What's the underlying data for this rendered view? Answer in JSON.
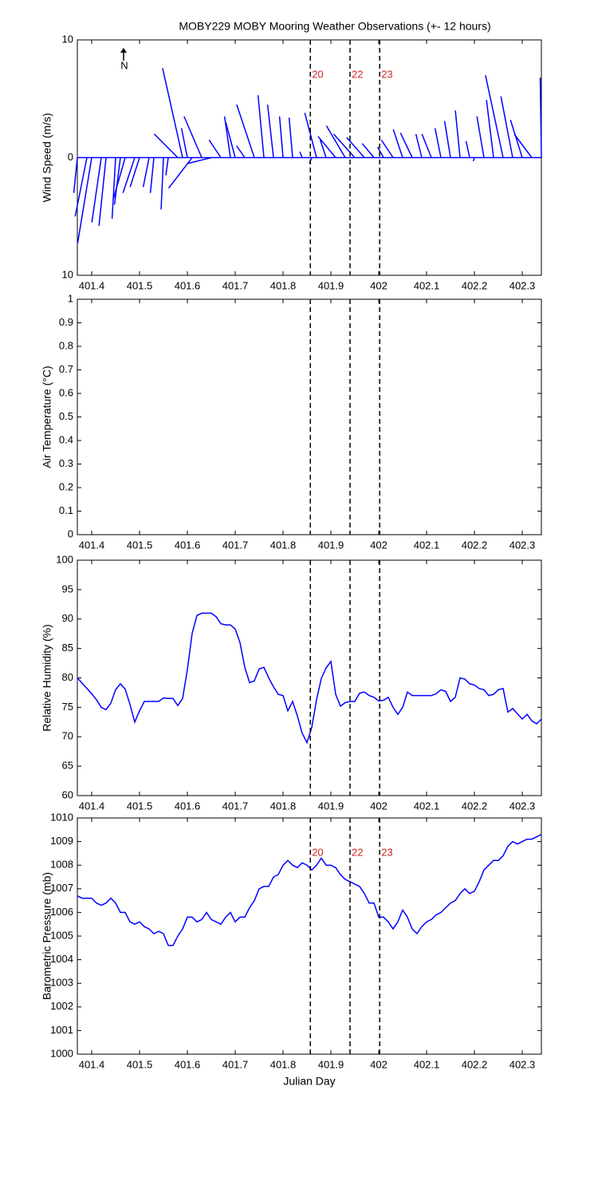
{
  "chart_data": [
    {
      "type": "stick",
      "title": "MOBY229 MOBY Mooring Weather Observations (+- 12 hours)",
      "ylabel": "Wind Speed (m/s)",
      "north_label": "N",
      "color": "#0000ff",
      "xlim": [
        401.37,
        402.34
      ],
      "xticks": [
        401.4,
        401.5,
        401.6,
        401.7,
        401.8,
        401.9,
        402,
        402.1,
        402.2,
        402.3
      ],
      "ylim": [
        -10,
        10
      ],
      "yticks": [
        {
          "value": -10,
          "label": "10"
        },
        0,
        10
      ],
      "markers": [
        {
          "value": 401.857,
          "label": "20"
        },
        {
          "value": 401.94,
          "label": "22"
        },
        {
          "value": 402.002,
          "label": "23"
        }
      ],
      "x": [
        401.37,
        401.39,
        401.4,
        401.42,
        401.43,
        401.45,
        401.46,
        401.47,
        401.49,
        401.5,
        401.52,
        401.53,
        401.55,
        401.56,
        401.58,
        401.59,
        401.6,
        401.61,
        401.63,
        401.65,
        401.67,
        401.69,
        401.7,
        401.72,
        401.74,
        401.76,
        401.78,
        401.8,
        401.82,
        401.84,
        401.86,
        401.87,
        401.89,
        401.91,
        401.93,
        401.95,
        401.97,
        401.99,
        402.01,
        402.03,
        402.05,
        402.07,
        402.09,
        402.11,
        402.13,
        402.15,
        402.17,
        402.19,
        402.2,
        402.22,
        402.24,
        402.26,
        402.28,
        402.3,
        402.32,
        402.34
      ],
      "u": [
        -0.3,
        -1,
        -1.2,
        -0.8,
        -0.6,
        -0.3,
        -0.5,
        -1,
        -1,
        -0.8,
        -0.5,
        -0.3,
        -0.2,
        -0.2,
        -2,
        -1.7,
        -0.5,
        -2,
        -1.5,
        -2,
        -1,
        -0.5,
        -0.8,
        -0.7,
        -1.5,
        -0.5,
        -0.5,
        -0.3,
        -0.3,
        -0.2,
        -0.2,
        -1,
        -0.5,
        -1.5,
        -1.6,
        -1.8,
        -1.5,
        -1,
        -0.5,
        -1,
        -0.8,
        -1,
        -0.5,
        -0.8,
        -0.5,
        -0.5,
        -0.4,
        -0.3,
        -0.1,
        -0.6,
        -0.6,
        -1.5,
        -1,
        -1,
        -1.5,
        -0.1
      ],
      "v": [
        -3,
        -5,
        -7.3,
        -5.5,
        -5.8,
        -5.2,
        -4,
        -3.5,
        -3,
        -2.5,
        -2.5,
        -3,
        -4.4,
        -1.5,
        2,
        7.6,
        2.5,
        -2.6,
        3.5,
        -0.5,
        1.5,
        3.5,
        3,
        1,
        4.5,
        5.3,
        4.5,
        3.5,
        3.4,
        0.5,
        -0.5,
        3.8,
        1.5,
        1.8,
        2.7,
        2,
        1.7,
        1.2,
        0.9,
        1.5,
        2.4,
        2.1,
        2,
        2,
        2.5,
        3.1,
        4,
        1.4,
        -0.3,
        3.5,
        4.9,
        7,
        5.2,
        3.2,
        2,
        6.8
      ]
    },
    {
      "type": "line",
      "ylabel": "Air Temperature (°C)",
      "color": "#0000ff",
      "xlim": [
        401.37,
        402.34
      ],
      "xticks": [
        401.4,
        401.5,
        401.6,
        401.7,
        401.8,
        401.9,
        402,
        402.1,
        402.2,
        402.3
      ],
      "ylim": [
        0,
        1
      ],
      "yticks": [
        0,
        0.1,
        0.2,
        0.3,
        0.4,
        0.5,
        0.6,
        0.7,
        0.8,
        0.9,
        1
      ],
      "markers": [
        {
          "value": 401.857
        },
        {
          "value": 401.94
        },
        {
          "value": 402.002
        }
      ],
      "x": [],
      "values": []
    },
    {
      "type": "line",
      "ylabel": "Relative Humidity (%)",
      "color": "#0000ff",
      "xlim": [
        401.37,
        402.34
      ],
      "xticks": [
        401.4,
        401.5,
        401.6,
        401.7,
        401.8,
        401.9,
        402,
        402.1,
        402.2,
        402.3
      ],
      "ylim": [
        60,
        100
      ],
      "yticks": [
        60,
        65,
        70,
        75,
        80,
        85,
        90,
        95,
        100
      ],
      "markers": [
        {
          "value": 401.857
        },
        {
          "value": 401.94
        },
        {
          "value": 402.002
        }
      ],
      "x": [
        401.37,
        401.38,
        401.39,
        401.4,
        401.41,
        401.42,
        401.43,
        401.44,
        401.45,
        401.46,
        401.47,
        401.48,
        401.49,
        401.5,
        401.51,
        401.52,
        401.53,
        401.54,
        401.55,
        401.56,
        401.57,
        401.58,
        401.59,
        401.6,
        401.61,
        401.62,
        401.63,
        401.64,
        401.65,
        401.66,
        401.67,
        401.68,
        401.69,
        401.7,
        401.71,
        401.72,
        401.73,
        401.74,
        401.75,
        401.76,
        401.77,
        401.78,
        401.79,
        401.8,
        401.81,
        401.82,
        401.83,
        401.84,
        401.85,
        401.86,
        401.87,
        401.88,
        401.89,
        401.9,
        401.91,
        401.92,
        401.93,
        401.94,
        401.95,
        401.96,
        401.97,
        401.98,
        401.99,
        402,
        402.01,
        402.02,
        402.03,
        402.04,
        402.05,
        402.06,
        402.07,
        402.08,
        402.09,
        402.1,
        402.11,
        402.12,
        402.13,
        402.14,
        402.15,
        402.16,
        402.17,
        402.18,
        402.19,
        402.2,
        402.21,
        402.22,
        402.23,
        402.24,
        402.25,
        402.26,
        402.27,
        402.28,
        402.29,
        402.3,
        402.31,
        402.32,
        402.33,
        402.34
      ],
      "values": [
        80,
        79.1,
        78.2,
        77.3,
        76.3,
        75,
        74.6,
        75.7,
        78,
        79,
        78.1,
        75.5,
        72.5,
        74.4,
        76,
        76,
        76,
        76,
        76.6,
        76.5,
        76.5,
        75.3,
        76.5,
        81.4,
        87.6,
        90.6,
        91,
        91,
        91,
        90.4,
        89.2,
        89,
        89,
        88.3,
        86,
        81.8,
        79.2,
        79.5,
        81.5,
        81.8,
        80,
        78.5,
        77.2,
        77,
        74.4,
        76,
        73.5,
        70.6,
        69,
        71.6,
        76.3,
        79.9,
        81.7,
        82.8,
        77.2,
        75.2,
        75.8,
        76,
        76,
        77.4,
        77.6,
        77,
        76.7,
        76.1,
        76.2,
        76.7,
        75,
        73.8,
        75,
        77.6,
        77,
        77,
        77,
        77,
        77,
        77.3,
        78,
        77.7,
        76,
        76.7,
        80,
        79.8,
        79,
        78.8,
        78.2,
        78,
        77,
        77.2,
        78,
        78.2,
        74.2,
        74.8,
        73.9,
        73,
        73.8,
        72.7,
        72.2,
        73
      ]
    },
    {
      "type": "line",
      "ylabel": "Barometric Pressure (mb)",
      "xlabel": "Julian Day",
      "color": "#0000ff",
      "xlim": [
        401.37,
        402.34
      ],
      "xticks": [
        401.4,
        401.5,
        401.6,
        401.7,
        401.8,
        401.9,
        402,
        402.1,
        402.2,
        402.3
      ],
      "ylim": [
        1000,
        1010
      ],
      "yticks": [
        1000,
        1001,
        1002,
        1003,
        1004,
        1005,
        1006,
        1007,
        1008,
        1009,
        1010
      ],
      "markers": [
        {
          "value": 401.857,
          "label": "20"
        },
        {
          "value": 401.94,
          "label": "22"
        },
        {
          "value": 402.002,
          "label": "23"
        }
      ],
      "x": [
        401.37,
        401.38,
        401.39,
        401.4,
        401.41,
        401.42,
        401.43,
        401.44,
        401.45,
        401.46,
        401.47,
        401.48,
        401.49,
        401.5,
        401.51,
        401.52,
        401.53,
        401.54,
        401.55,
        401.56,
        401.57,
        401.58,
        401.59,
        401.6,
        401.61,
        401.62,
        401.63,
        401.64,
        401.65,
        401.66,
        401.67,
        401.68,
        401.69,
        401.7,
        401.71,
        401.72,
        401.73,
        401.74,
        401.75,
        401.76,
        401.77,
        401.78,
        401.79,
        401.8,
        401.81,
        401.82,
        401.83,
        401.84,
        401.85,
        401.86,
        401.87,
        401.88,
        401.89,
        401.9,
        401.91,
        401.92,
        401.93,
        401.94,
        401.95,
        401.96,
        401.97,
        401.98,
        401.99,
        402,
        402.01,
        402.02,
        402.03,
        402.04,
        402.05,
        402.06,
        402.07,
        402.08,
        402.09,
        402.1,
        402.11,
        402.12,
        402.13,
        402.14,
        402.15,
        402.16,
        402.17,
        402.18,
        402.19,
        402.2,
        402.21,
        402.22,
        402.23,
        402.24,
        402.25,
        402.26,
        402.27,
        402.28,
        402.29,
        402.3,
        402.31,
        402.32,
        402.33,
        402.34
      ],
      "values": [
        1006.7,
        1006.6,
        1006.6,
        1006.6,
        1006.4,
        1006.3,
        1006.4,
        1006.6,
        1006.4,
        1006,
        1006,
        1005.6,
        1005.5,
        1005.6,
        1005.4,
        1005.3,
        1005.1,
        1005.2,
        1005.1,
        1004.6,
        1004.6,
        1005,
        1005.3,
        1005.8,
        1005.8,
        1005.6,
        1005.7,
        1006,
        1005.7,
        1005.6,
        1005.5,
        1005.8,
        1006,
        1005.6,
        1005.8,
        1005.8,
        1006.2,
        1006.5,
        1007,
        1007.1,
        1007.1,
        1007.5,
        1007.6,
        1008,
        1008.2,
        1008,
        1007.9,
        1008.1,
        1008,
        1007.8,
        1008,
        1008.3,
        1008,
        1008,
        1007.9,
        1007.6,
        1007.4,
        1007.3,
        1007.2,
        1007.1,
        1006.8,
        1006.4,
        1006.4,
        1005.8,
        1005.8,
        1005.6,
        1005.3,
        1005.6,
        1006.1,
        1005.8,
        1005.3,
        1005.1,
        1005.4,
        1005.6,
        1005.7,
        1005.9,
        1006,
        1006.2,
        1006.4,
        1006.5,
        1006.8,
        1007,
        1006.8,
        1006.9,
        1007.3,
        1007.8,
        1008,
        1008.2,
        1008.2,
        1008.4,
        1008.8,
        1009,
        1008.9,
        1009,
        1009.1,
        1009.1,
        1009.2,
        1009.3
      ]
    }
  ]
}
